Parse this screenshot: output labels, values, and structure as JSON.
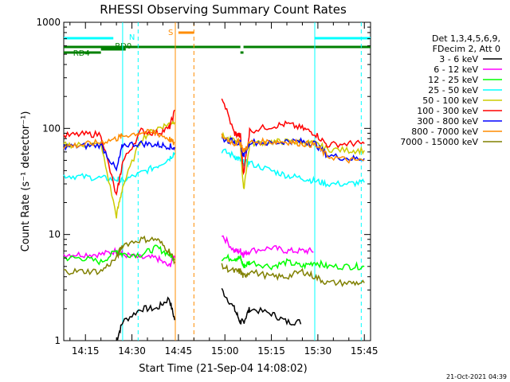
{
  "chart_data": {
    "type": "line",
    "title": "RHESSI Observing Summary Count Rates",
    "xlabel": "Start Time (21-Sep-04 14:08:02)",
    "ylabel": "Count Rate (s⁻¹ detector⁻¹)",
    "yscale": "log",
    "ylim": [
      1,
      1000
    ],
    "xlim": [
      "14:08",
      "15:47"
    ],
    "x_ticks": [
      "14:15",
      "14:30",
      "14:45",
      "15:00",
      "15:15",
      "15:30",
      "15:45"
    ],
    "y_ticks": [
      "1",
      "10",
      "100",
      "1000"
    ],
    "legend_title_lines": [
      "Det 1,3,4,5,6,9,",
      "FDecim 2, Att 0"
    ],
    "legend_position": "right",
    "footer": "21-Oct-2021 04:39",
    "x_time_points": [
      "14:08",
      "14:14",
      "14:20",
      "14:25",
      "14:27",
      "14:33",
      "14:38",
      "14:42",
      "14:44",
      "14:56",
      "14:59",
      "15:03",
      "15:05",
      "15:06",
      "15:08",
      "15:15",
      "15:20",
      "15:25",
      "15:29",
      "15:33",
      "15:40",
      "15:45"
    ],
    "series": [
      {
        "name": "3 - 6 keV",
        "color": "#000000",
        "values": [
          null,
          null,
          null,
          1.0,
          1.5,
          2.0,
          2.0,
          2.5,
          1.5,
          null,
          3.0,
          2.0,
          1.5,
          1.5,
          2.0,
          1.8,
          1.5,
          1.5,
          null,
          null,
          null,
          null
        ]
      },
      {
        "name": "6 - 12 keV",
        "color": "#ff00ff",
        "values": [
          6.5,
          6.5,
          6.5,
          7.0,
          6.5,
          6.0,
          6.0,
          5.0,
          6.5,
          null,
          10,
          7.0,
          7.0,
          6.5,
          7.0,
          7.5,
          7.0,
          7.0,
          7.0,
          null,
          null,
          null
        ]
      },
      {
        "name": "12 - 25 keV",
        "color": "#00ff00",
        "values": [
          6.0,
          6.0,
          5.5,
          7.0,
          6.5,
          6.5,
          7.5,
          6.5,
          6.0,
          null,
          6.0,
          6.0,
          6.0,
          5.0,
          5.5,
          5.0,
          5.5,
          5.0,
          5.5,
          5.0,
          5.0,
          5.0
        ]
      },
      {
        "name": "25 - 50 keV",
        "color": "#00ffff",
        "values": [
          36,
          35,
          34,
          33,
          32,
          38,
          44,
          52,
          60,
          null,
          62,
          55,
          50,
          48,
          47,
          40,
          36,
          34,
          32,
          30,
          30,
          31
        ]
      },
      {
        "name": "50 - 100 keV",
        "color": "#cccc00",
        "values": [
          70,
          70,
          70,
          15,
          28,
          80,
          100,
          110,
          120,
          null,
          85,
          75,
          72,
          26,
          72,
          75,
          75,
          74,
          72,
          64,
          62,
          62
        ]
      },
      {
        "name": "100 - 300 keV",
        "color": "#ff0000",
        "values": [
          85,
          88,
          88,
          23,
          48,
          95,
          90,
          100,
          150,
          null,
          200,
          90,
          85,
          38,
          95,
          105,
          110,
          100,
          90,
          70,
          72,
          72
        ]
      },
      {
        "name": "300 - 800 keV",
        "color": "#0000ff",
        "values": [
          68,
          68,
          70,
          40,
          70,
          72,
          70,
          68,
          65,
          null,
          80,
          75,
          72,
          55,
          75,
          72,
          76,
          75,
          72,
          56,
          52,
          52
        ]
      },
      {
        "name": "800 - 7000 keV",
        "color": "#ff8c00",
        "values": [
          68,
          70,
          74,
          80,
          85,
          92,
          90,
          80,
          70,
          null,
          85,
          72,
          75,
          60,
          74,
          75,
          75,
          72,
          70,
          55,
          50,
          50
        ]
      },
      {
        "name": "7000 - 15000 keV",
        "color": "#808000",
        "values": [
          4.5,
          4.5,
          4.5,
          6.0,
          8.0,
          9.0,
          9.0,
          7.0,
          5.5,
          null,
          5.0,
          4.5,
          4.5,
          4.0,
          4.5,
          4.0,
          4.0,
          4.5,
          4.0,
          3.5,
          3.5,
          3.5
        ]
      }
    ],
    "annotations": [
      {
        "text": "N",
        "color": "#00ffff"
      },
      {
        "text": "RD0",
        "color": "#008000"
      },
      {
        "text": "RD4",
        "color": "#008000"
      },
      {
        "text": "S",
        "color": "#ff8c00"
      }
    ],
    "bar_colors": {
      "night": "#00ffff",
      "decimation": "#008000",
      "saa": "#ff8c00"
    }
  }
}
